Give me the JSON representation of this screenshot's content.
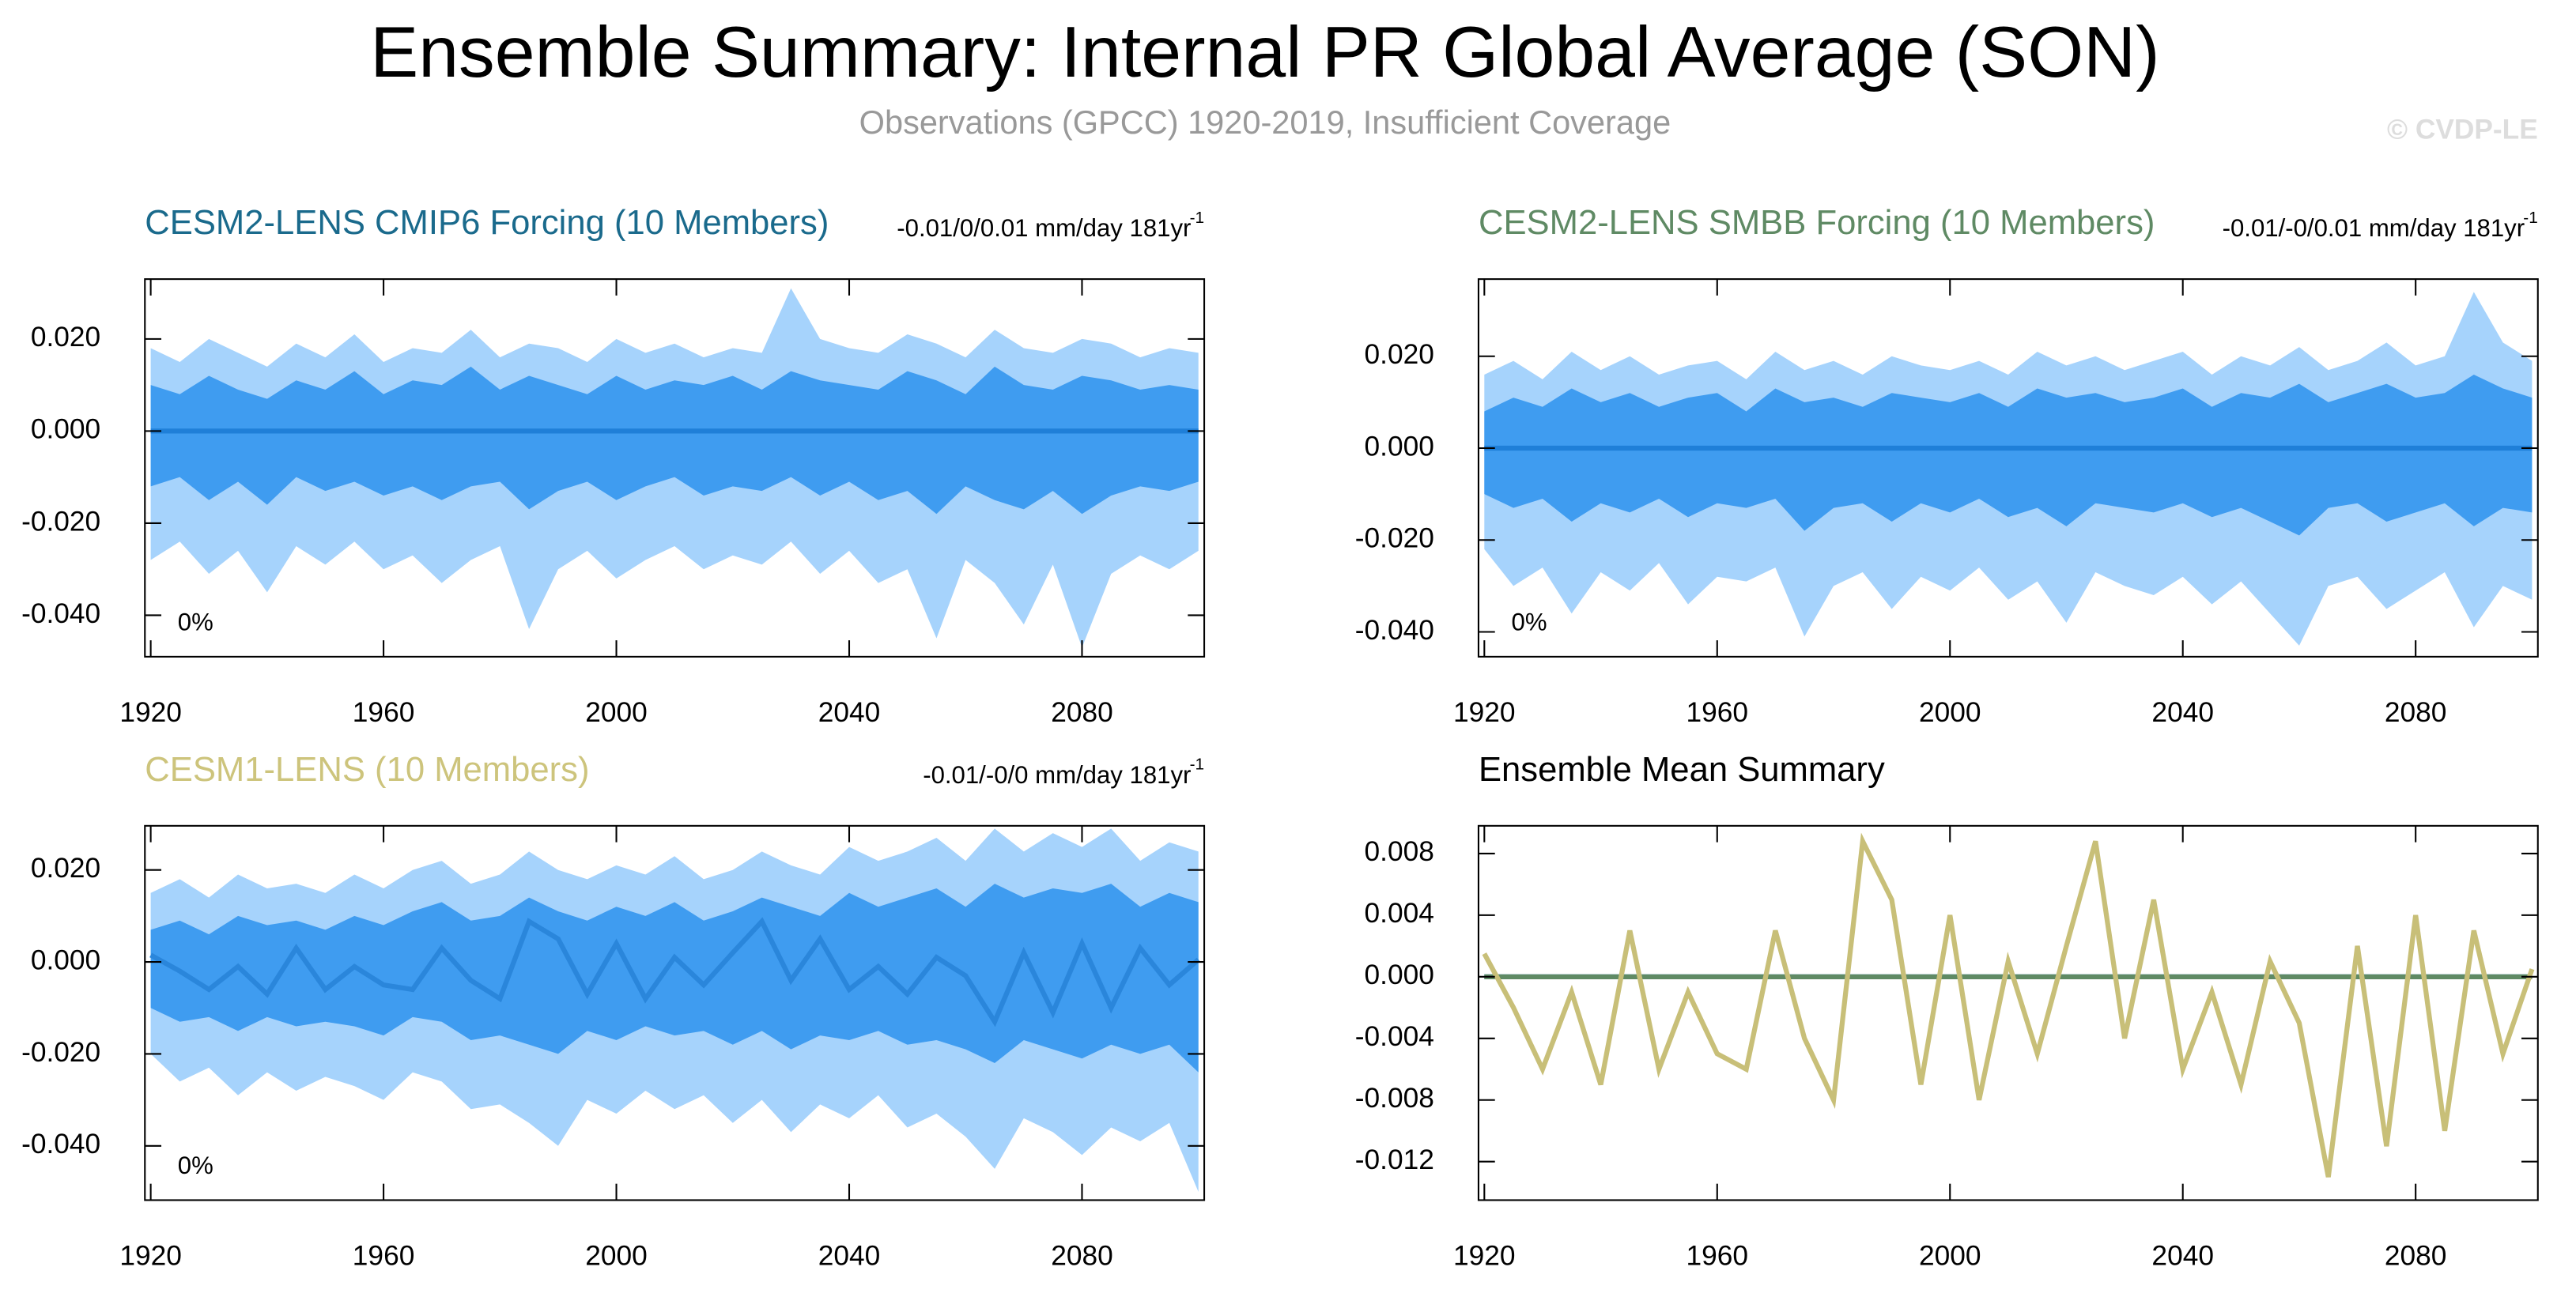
{
  "title": "Ensemble Summary: Internal PR Global Average (SON)",
  "subtitle": "Observations (GPCC) 1920-2019, Insufficient Coverage",
  "credit": "© CVDP-LE",
  "chart_data": [
    {
      "type": "band",
      "title": "CESM2-LENS CMIP6 Forcing (10 Members)",
      "title_color": "#1a6a8c",
      "annotation": "-0.01/0/0.01 mm/day 181yr",
      "annotation_exp": "-1",
      "coverage": "0%",
      "x": [
        1920,
        1925,
        1930,
        1935,
        1940,
        1945,
        1950,
        1955,
        1960,
        1965,
        1970,
        1975,
        1980,
        1985,
        1990,
        1995,
        2000,
        2005,
        2010,
        2015,
        2020,
        2025,
        2030,
        2035,
        2040,
        2045,
        2050,
        2055,
        2060,
        2065,
        2070,
        2075,
        2080,
        2085,
        2090,
        2095,
        2100
      ],
      "bands": [
        {
          "color": "#a6d3fc",
          "low": [
            -0.028,
            -0.024,
            -0.031,
            -0.026,
            -0.035,
            -0.025,
            -0.029,
            -0.024,
            -0.03,
            -0.027,
            -0.033,
            -0.028,
            -0.025,
            -0.043,
            -0.03,
            -0.026,
            -0.032,
            -0.028,
            -0.025,
            -0.03,
            -0.027,
            -0.029,
            -0.024,
            -0.031,
            -0.026,
            -0.033,
            -0.03,
            -0.045,
            -0.028,
            -0.033,
            -0.042,
            -0.029,
            -0.047,
            -0.031,
            -0.027,
            -0.03,
            -0.026
          ],
          "high": [
            0.018,
            0.015,
            0.02,
            0.017,
            0.014,
            0.019,
            0.016,
            0.021,
            0.015,
            0.018,
            0.017,
            0.022,
            0.016,
            0.019,
            0.018,
            0.015,
            0.02,
            0.017,
            0.019,
            0.016,
            0.018,
            0.017,
            0.031,
            0.02,
            0.018,
            0.017,
            0.021,
            0.019,
            0.016,
            0.022,
            0.018,
            0.017,
            0.02,
            0.019,
            0.016,
            0.018,
            0.017
          ]
        },
        {
          "color": "#3f9cf0",
          "low": [
            -0.012,
            -0.01,
            -0.015,
            -0.011,
            -0.016,
            -0.01,
            -0.013,
            -0.011,
            -0.014,
            -0.012,
            -0.015,
            -0.012,
            -0.011,
            -0.017,
            -0.013,
            -0.011,
            -0.015,
            -0.012,
            -0.01,
            -0.014,
            -0.012,
            -0.013,
            -0.01,
            -0.014,
            -0.011,
            -0.015,
            -0.013,
            -0.018,
            -0.012,
            -0.015,
            -0.017,
            -0.013,
            -0.018,
            -0.014,
            -0.012,
            -0.013,
            -0.011
          ],
          "high": [
            0.01,
            0.008,
            0.012,
            0.009,
            0.007,
            0.011,
            0.009,
            0.013,
            0.008,
            0.011,
            0.01,
            0.014,
            0.009,
            0.012,
            0.01,
            0.008,
            0.012,
            0.009,
            0.011,
            0.01,
            0.012,
            0.009,
            0.013,
            0.011,
            0.01,
            0.009,
            0.013,
            0.011,
            0.008,
            0.014,
            0.01,
            0.009,
            0.012,
            0.011,
            0.009,
            0.01,
            0.009
          ]
        }
      ],
      "series": [
        {
          "color": "#1f7fd8",
          "values": [
            0,
            0,
            0,
            0,
            0,
            0,
            0,
            0,
            0,
            0,
            0,
            0,
            0,
            0,
            0,
            0,
            0,
            0,
            0,
            0,
            0,
            0,
            0,
            0,
            0,
            0,
            0,
            0,
            0,
            0,
            0,
            0,
            0,
            0,
            0,
            0,
            0
          ]
        }
      ],
      "xlim": [
        1919,
        2101
      ],
      "xticks": [
        1920,
        1960,
        2000,
        2040,
        2080
      ],
      "ylim": [
        -0.049,
        0.033
      ],
      "yticks": [
        {
          "value": -0.04,
          "label": "-0.040"
        },
        {
          "value": -0.02,
          "label": "-0.020"
        },
        {
          "value": 0,
          "label": "0.000"
        },
        {
          "value": 0.02,
          "label": "0.020"
        }
      ]
    },
    {
      "type": "band",
      "title": "CESM2-LENS SMBB Forcing (10 Members)",
      "title_color": "#5f8a64",
      "annotation": "-0.01/-0/0.01 mm/day 181yr",
      "annotation_exp": "-1",
      "coverage": "0%",
      "x": [
        1920,
        1925,
        1930,
        1935,
        1940,
        1945,
        1950,
        1955,
        1960,
        1965,
        1970,
        1975,
        1980,
        1985,
        1990,
        1995,
        2000,
        2005,
        2010,
        2015,
        2020,
        2025,
        2030,
        2035,
        2040,
        2045,
        2050,
        2055,
        2060,
        2065,
        2070,
        2075,
        2080,
        2085,
        2090,
        2095,
        2100
      ],
      "bands": [
        {
          "color": "#a6d3fc",
          "low": [
            -0.022,
            -0.03,
            -0.026,
            -0.036,
            -0.027,
            -0.031,
            -0.025,
            -0.034,
            -0.028,
            -0.029,
            -0.026,
            -0.041,
            -0.03,
            -0.027,
            -0.035,
            -0.028,
            -0.031,
            -0.026,
            -0.033,
            -0.029,
            -0.038,
            -0.027,
            -0.03,
            -0.032,
            -0.028,
            -0.034,
            -0.029,
            -0.036,
            -0.043,
            -0.03,
            -0.028,
            -0.035,
            -0.031,
            -0.027,
            -0.039,
            -0.03,
            -0.033
          ],
          "high": [
            0.016,
            0.019,
            0.015,
            0.021,
            0.017,
            0.02,
            0.016,
            0.018,
            0.019,
            0.015,
            0.021,
            0.017,
            0.019,
            0.016,
            0.02,
            0.018,
            0.017,
            0.019,
            0.016,
            0.021,
            0.018,
            0.02,
            0.017,
            0.019,
            0.021,
            0.016,
            0.02,
            0.018,
            0.022,
            0.017,
            0.019,
            0.023,
            0.018,
            0.02,
            0.034,
            0.023,
            0.019
          ]
        },
        {
          "color": "#3f9cf0",
          "low": [
            -0.01,
            -0.013,
            -0.011,
            -0.016,
            -0.012,
            -0.014,
            -0.011,
            -0.015,
            -0.012,
            -0.013,
            -0.011,
            -0.018,
            -0.013,
            -0.012,
            -0.016,
            -0.012,
            -0.014,
            -0.011,
            -0.015,
            -0.013,
            -0.017,
            -0.012,
            -0.013,
            -0.014,
            -0.012,
            -0.015,
            -0.013,
            -0.016,
            -0.019,
            -0.013,
            -0.012,
            -0.016,
            -0.014,
            -0.012,
            -0.017,
            -0.013,
            -0.014
          ],
          "high": [
            0.008,
            0.011,
            0.009,
            0.013,
            0.01,
            0.012,
            0.009,
            0.011,
            0.012,
            0.008,
            0.013,
            0.01,
            0.011,
            0.009,
            0.012,
            0.011,
            0.01,
            0.012,
            0.009,
            0.013,
            0.011,
            0.012,
            0.01,
            0.011,
            0.013,
            0.009,
            0.012,
            0.011,
            0.014,
            0.01,
            0.012,
            0.014,
            0.011,
            0.012,
            0.016,
            0.013,
            0.011
          ]
        }
      ],
      "series": [
        {
          "color": "#1f7fd8",
          "values": [
            0,
            0,
            0,
            0,
            0,
            0,
            0,
            0,
            0,
            0,
            0,
            0,
            0,
            0,
            0,
            0,
            0,
            0,
            0,
            0,
            0,
            0,
            0,
            0,
            0,
            0,
            0,
            0,
            0,
            0,
            0,
            0,
            0,
            0,
            0,
            0,
            0
          ]
        }
      ],
      "xlim": [
        1919,
        2101
      ],
      "xticks": [
        1920,
        1960,
        2000,
        2040,
        2080
      ],
      "ylim": [
        -0.0454,
        0.0368
      ],
      "yticks": [
        {
          "value": -0.04,
          "label": "-0.040"
        },
        {
          "value": -0.02,
          "label": "-0.020"
        },
        {
          "value": 0,
          "label": "0.000"
        },
        {
          "value": 0.02,
          "label": "0.020"
        }
      ]
    },
    {
      "type": "band",
      "title": "CESM1-LENS (10 Members)",
      "title_color": "#cdc47c",
      "annotation": "-0.01/-0/0 mm/day 181yr",
      "annotation_exp": "-1",
      "coverage": "0%",
      "x": [
        1920,
        1925,
        1930,
        1935,
        1940,
        1945,
        1950,
        1955,
        1960,
        1965,
        1970,
        1975,
        1980,
        1985,
        1990,
        1995,
        2000,
        2005,
        2010,
        2015,
        2020,
        2025,
        2030,
        2035,
        2040,
        2045,
        2050,
        2055,
        2060,
        2065,
        2070,
        2075,
        2080,
        2085,
        2090,
        2095,
        2100
      ],
      "bands": [
        {
          "color": "#a6d3fc",
          "low": [
            -0.02,
            -0.026,
            -0.023,
            -0.029,
            -0.024,
            -0.028,
            -0.025,
            -0.027,
            -0.03,
            -0.024,
            -0.026,
            -0.032,
            -0.031,
            -0.035,
            -0.04,
            -0.03,
            -0.033,
            -0.028,
            -0.032,
            -0.029,
            -0.035,
            -0.03,
            -0.037,
            -0.031,
            -0.034,
            -0.029,
            -0.036,
            -0.033,
            -0.038,
            -0.045,
            -0.034,
            -0.037,
            -0.042,
            -0.036,
            -0.039,
            -0.035,
            -0.05
          ],
          "high": [
            0.015,
            0.018,
            0.014,
            0.019,
            0.016,
            0.017,
            0.015,
            0.019,
            0.016,
            0.02,
            0.022,
            0.017,
            0.019,
            0.024,
            0.02,
            0.018,
            0.021,
            0.019,
            0.023,
            0.018,
            0.02,
            0.024,
            0.021,
            0.019,
            0.025,
            0.022,
            0.024,
            0.027,
            0.022,
            0.029,
            0.024,
            0.028,
            0.025,
            0.029,
            0.022,
            0.026,
            0.024
          ]
        },
        {
          "color": "#3f9cf0",
          "low": [
            -0.01,
            -0.013,
            -0.012,
            -0.015,
            -0.012,
            -0.014,
            -0.013,
            -0.014,
            -0.016,
            -0.012,
            -0.013,
            -0.017,
            -0.016,
            -0.018,
            -0.02,
            -0.015,
            -0.017,
            -0.014,
            -0.016,
            -0.015,
            -0.018,
            -0.015,
            -0.019,
            -0.016,
            -0.017,
            -0.015,
            -0.018,
            -0.017,
            -0.019,
            -0.022,
            -0.017,
            -0.019,
            -0.021,
            -0.018,
            -0.02,
            -0.018,
            -0.024
          ],
          "high": [
            0.007,
            0.009,
            0.006,
            0.01,
            0.008,
            0.009,
            0.007,
            0.01,
            0.008,
            0.011,
            0.013,
            0.009,
            0.01,
            0.014,
            0.011,
            0.009,
            0.012,
            0.01,
            0.013,
            0.009,
            0.011,
            0.014,
            0.012,
            0.01,
            0.015,
            0.012,
            0.014,
            0.016,
            0.012,
            0.017,
            0.014,
            0.016,
            0.015,
            0.017,
            0.012,
            0.015,
            0.013
          ]
        }
      ],
      "series": [
        {
          "color": "#2a86db",
          "values": [
            0.0015,
            -0.002,
            -0.006,
            -0.001,
            -0.007,
            0.003,
            -0.006,
            -0.001,
            -0.005,
            -0.006,
            0.003,
            -0.004,
            -0.008,
            0.0088,
            0.005,
            -0.007,
            0.004,
            -0.008,
            0.001,
            -0.005,
            0.002,
            0.0088,
            -0.004,
            0.005,
            -0.006,
            -0.001,
            -0.007,
            0.001,
            -0.003,
            -0.013,
            0.002,
            -0.011,
            0.004,
            -0.01,
            0.003,
            -0.005,
            0.0005
          ]
        }
      ],
      "xlim": [
        1919,
        2101
      ],
      "xticks": [
        1920,
        1960,
        2000,
        2040,
        2080
      ],
      "ylim": [
        -0.0518,
        0.0296
      ],
      "yticks": [
        {
          "value": -0.04,
          "label": "-0.040"
        },
        {
          "value": -0.02,
          "label": "-0.020"
        },
        {
          "value": 0,
          "label": "0.000"
        },
        {
          "value": 0.02,
          "label": "0.020"
        }
      ]
    },
    {
      "type": "line",
      "title": "Ensemble Mean Summary",
      "title_color": "#000000",
      "x": [
        1920,
        1925,
        1930,
        1935,
        1940,
        1945,
        1950,
        1955,
        1960,
        1965,
        1970,
        1975,
        1980,
        1985,
        1990,
        1995,
        2000,
        2005,
        2010,
        2015,
        2020,
        2025,
        2030,
        2035,
        2040,
        2045,
        2050,
        2055,
        2060,
        2065,
        2070,
        2075,
        2080,
        2085,
        2090,
        2095,
        2100
      ],
      "series": [
        {
          "color": "#2a86db",
          "values": [
            0,
            0,
            0,
            0,
            0,
            0,
            0,
            0,
            0,
            0,
            0,
            0,
            0,
            0,
            0,
            0,
            0,
            0,
            0,
            0,
            0,
            0,
            0,
            0,
            0,
            0,
            0,
            0,
            0,
            0,
            0,
            0,
            0,
            0,
            0,
            0,
            0
          ]
        },
        {
          "color": "#5f8a64",
          "values": [
            0,
            0,
            0,
            0,
            0,
            0,
            0,
            0,
            0,
            0,
            0,
            0,
            0,
            0,
            0,
            0,
            0,
            0,
            0,
            0,
            0,
            0,
            0,
            0,
            0,
            0,
            0,
            0,
            0,
            0,
            0,
            0,
            0,
            0,
            0,
            0,
            0
          ]
        },
        {
          "color": "#c8bf78",
          "values": [
            0.0015,
            -0.002,
            -0.006,
            -0.001,
            -0.007,
            0.003,
            -0.006,
            -0.001,
            -0.005,
            -0.006,
            0.003,
            -0.004,
            -0.008,
            0.0088,
            0.005,
            -0.007,
            0.004,
            -0.008,
            0.001,
            -0.005,
            0.002,
            0.0088,
            -0.004,
            0.005,
            -0.006,
            -0.001,
            -0.007,
            0.001,
            -0.003,
            -0.013,
            0.002,
            -0.011,
            0.004,
            -0.01,
            0.003,
            -0.005,
            0.0005
          ]
        }
      ],
      "xlim": [
        1919,
        2101
      ],
      "xticks": [
        1920,
        1960,
        2000,
        2040,
        2080
      ],
      "ylim": [
        -0.0145,
        0.0098
      ],
      "yticks": [
        {
          "value": -0.012,
          "label": "-0.012"
        },
        {
          "value": -0.008,
          "label": "-0.008"
        },
        {
          "value": -0.004,
          "label": "-0.004"
        },
        {
          "value": 0,
          "label": "0.000"
        },
        {
          "value": 0.004,
          "label": "0.004"
        },
        {
          "value": 0.008,
          "label": "0.008"
        }
      ]
    }
  ]
}
